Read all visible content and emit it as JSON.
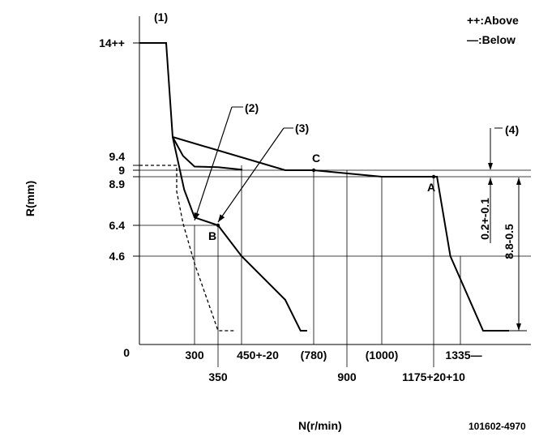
{
  "chart_data": {
    "type": "line",
    "title": "",
    "xlabel": "N(r/min)",
    "ylabel": "R(mm)",
    "drawing_number": "101602-4970",
    "legend": {
      "above": "++:Above",
      "below": "—:Below"
    },
    "x_ticks": [
      {
        "label": "300",
        "value": 300
      },
      {
        "label": "350",
        "value": 350
      },
      {
        "label": "450+-20",
        "value": 450
      },
      {
        "label": "(780)",
        "value": 780
      },
      {
        "label": "900",
        "value": 900
      },
      {
        "label": "(1000)",
        "value": 1000
      },
      {
        "label": "1175+20+10",
        "value": 1175
      },
      {
        "label": "1335—",
        "value": 1335
      }
    ],
    "y_ticks": [
      {
        "label": "0",
        "value": 0
      },
      {
        "label": "4.6",
        "value": 4.6
      },
      {
        "label": "6.4",
        "value": 6.4
      },
      {
        "label": "8.9",
        "value": 8.9
      },
      {
        "label": "9",
        "value": 9
      },
      {
        "label": "9.4",
        "value": 9.4
      },
      {
        "label": "14++",
        "value": 14
      }
    ],
    "callouts": [
      "(1)",
      "(2)",
      "(3)",
      "(4)"
    ],
    "points": [
      {
        "label": "A",
        "x": 1175,
        "y": 8.9
      },
      {
        "label": "B",
        "x": 350,
        "y": 6.4
      },
      {
        "label": "C",
        "x": 780,
        "y": 9
      }
    ],
    "dimensions": [
      {
        "label": "0.2+-0.1",
        "from": 9.0,
        "to": 8.8
      },
      {
        "label": "8.8-0.5",
        "from": 8.8,
        "to": 0.5
      }
    ],
    "series": [
      {
        "name": "main",
        "style": "solid",
        "x": [
          0,
          90,
          110,
          650,
          780,
          1000,
          1175,
          1195,
          1275,
          1395,
          1495
        ],
        "y": [
          14,
          14,
          10.0,
          9,
          9,
          8.9,
          8.9,
          8.9,
          4.6,
          0.5,
          0.5
        ]
      },
      {
        "name": "upper-branch",
        "style": "solid",
        "x": [
          110,
          200,
          300,
          350,
          450,
          450
        ],
        "y": [
          10.0,
          9.6,
          9.3,
          9.25,
          9.05,
          9.0
        ]
      },
      {
        "name": "lower-branch",
        "style": "solid",
        "x": [
          110,
          210,
          300,
          350,
          450,
          650,
          720,
          750
        ],
        "y": [
          10.0,
          8.2,
          6.8,
          6.4,
          4.6,
          2.2,
          0.5,
          0.5
        ]
      },
      {
        "name": "dashed",
        "style": "dashed",
        "x": [
          0,
          90,
          145,
          145,
          200,
          300,
          350,
          420
        ],
        "y": [
          9.4,
          9.4,
          9.4,
          8.1,
          6.5,
          4.2,
          0.5,
          0.5
        ]
      }
    ]
  }
}
